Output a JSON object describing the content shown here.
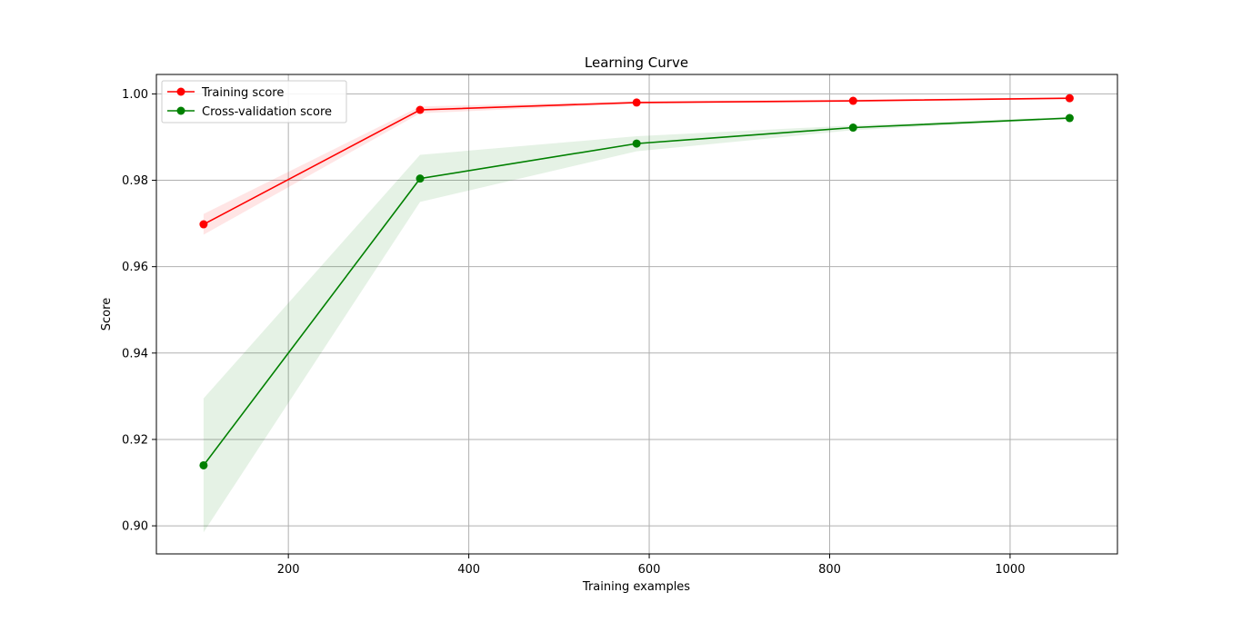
{
  "chart_data": {
    "type": "line",
    "title": "Learning Curve",
    "xlabel": "Training examples",
    "ylabel": "Score",
    "xlim": [
      53.7,
      1119
    ],
    "ylim": [
      0.8935,
      1.0045
    ],
    "xticks": [
      200,
      400,
      600,
      800,
      1000
    ],
    "xtick_labels": [
      "200",
      "400",
      "600",
      "800",
      "1000"
    ],
    "yticks": [
      0.9,
      0.92,
      0.94,
      0.96,
      0.98,
      1.0
    ],
    "ytick_labels": [
      "0.90",
      "0.92",
      "0.94",
      "0.96",
      "0.98",
      "1.00"
    ],
    "grid": true,
    "legend_position": "top-left",
    "x": [
      106,
      346,
      586,
      826,
      1066
    ],
    "series": [
      {
        "name": "Training score",
        "color": "#ff0000",
        "values": [
          0.9698,
          0.9963,
          0.998,
          0.9984,
          0.999
        ],
        "band_low": [
          0.9674,
          0.9955,
          0.9977,
          0.9981,
          0.9988
        ],
        "band_high": [
          0.9722,
          0.9971,
          0.9983,
          0.9987,
          0.9992
        ],
        "band_color": "#ff0000"
      },
      {
        "name": "Cross-validation score",
        "color": "#008000",
        "values": [
          0.914,
          0.9804,
          0.9885,
          0.9922,
          0.9944
        ],
        "band_low": [
          0.8985,
          0.975,
          0.9867,
          0.9916,
          0.9942
        ],
        "band_high": [
          0.9295,
          0.9859,
          0.9902,
          0.9927,
          0.9947
        ],
        "band_color": "#008000"
      }
    ]
  }
}
